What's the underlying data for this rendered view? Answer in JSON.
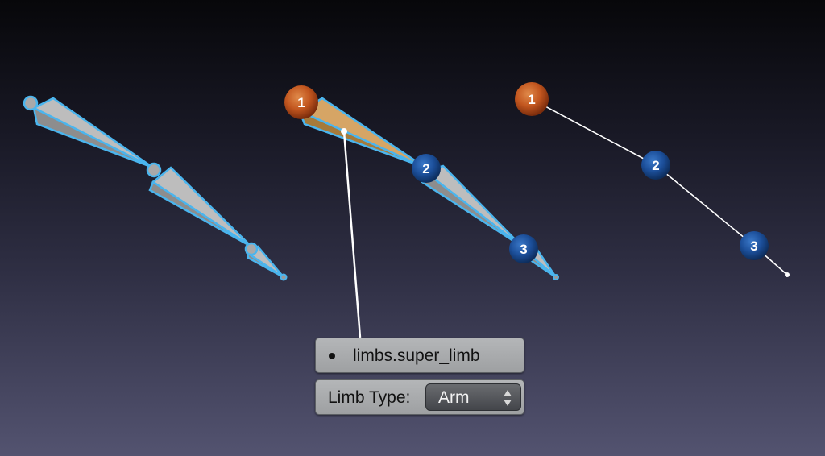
{
  "diagram": {
    "skeleton_rig": {
      "label": "bone chain (wireframe)"
    },
    "selected_chain": {
      "nodes": [
        {
          "number": "1",
          "role": "super limb root",
          "color": "#c2561f"
        },
        {
          "number": "2",
          "role": "limb joint",
          "color": "#1c4f9a"
        },
        {
          "number": "3",
          "role": "limb joint",
          "color": "#1c4f9a"
        }
      ]
    },
    "abstract_chain": {
      "nodes": [
        {
          "number": "1",
          "color": "#c2561f"
        },
        {
          "number": "2",
          "color": "#1c4f9a"
        },
        {
          "number": "3",
          "color": "#1c4f9a"
        }
      ]
    },
    "colors": {
      "bone_outline": "#4ab5ee",
      "bone_fill": "#9a9a9a",
      "selected_bone_fill": "#c79650",
      "connector_line": "#ffffff"
    }
  },
  "properties": {
    "bone_name": "limbs.super_limb",
    "limb_type_label": "Limb Type:",
    "limb_type_value": "Arm"
  }
}
